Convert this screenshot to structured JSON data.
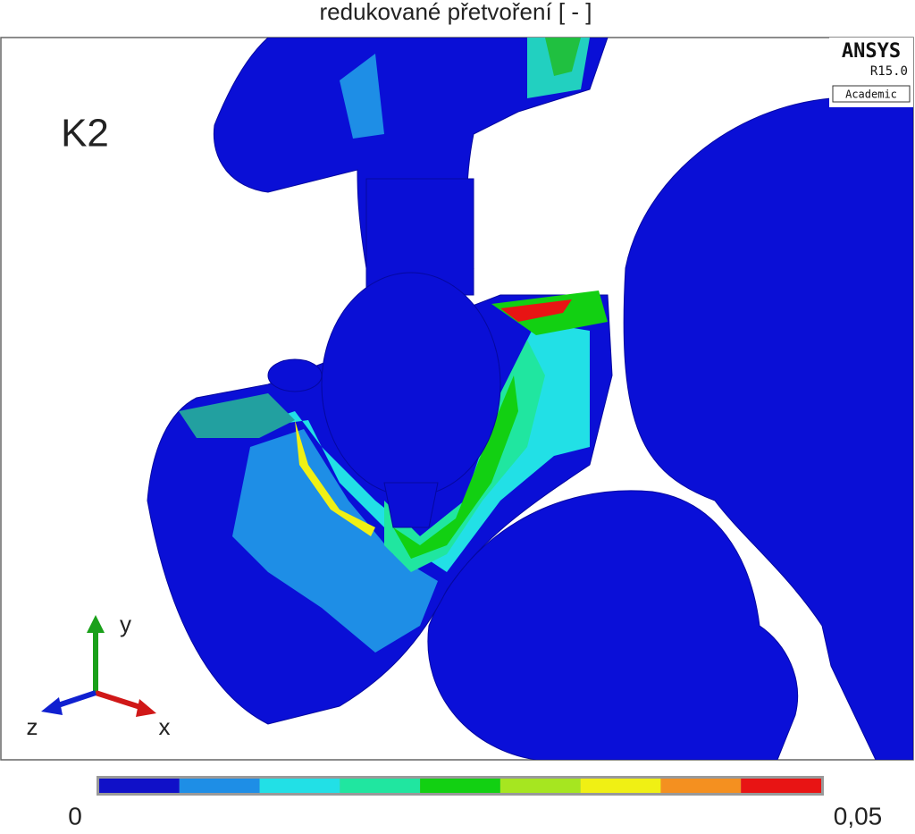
{
  "title": "redukované přetvoření [ - ]",
  "model_label": "K2",
  "logo": {
    "brand": "ANSYS",
    "version": "R15.0",
    "edition": "Academic"
  },
  "triad": {
    "x": "x",
    "y": "y",
    "z": "z"
  },
  "legend": {
    "colors": [
      "#1010c8",
      "#1e8ee6",
      "#22e0e6",
      "#20e6a0",
      "#12d012",
      "#a6e620",
      "#f0f014",
      "#f49020",
      "#e81414"
    ],
    "min_label": "0",
    "max_label": "0,05"
  }
}
